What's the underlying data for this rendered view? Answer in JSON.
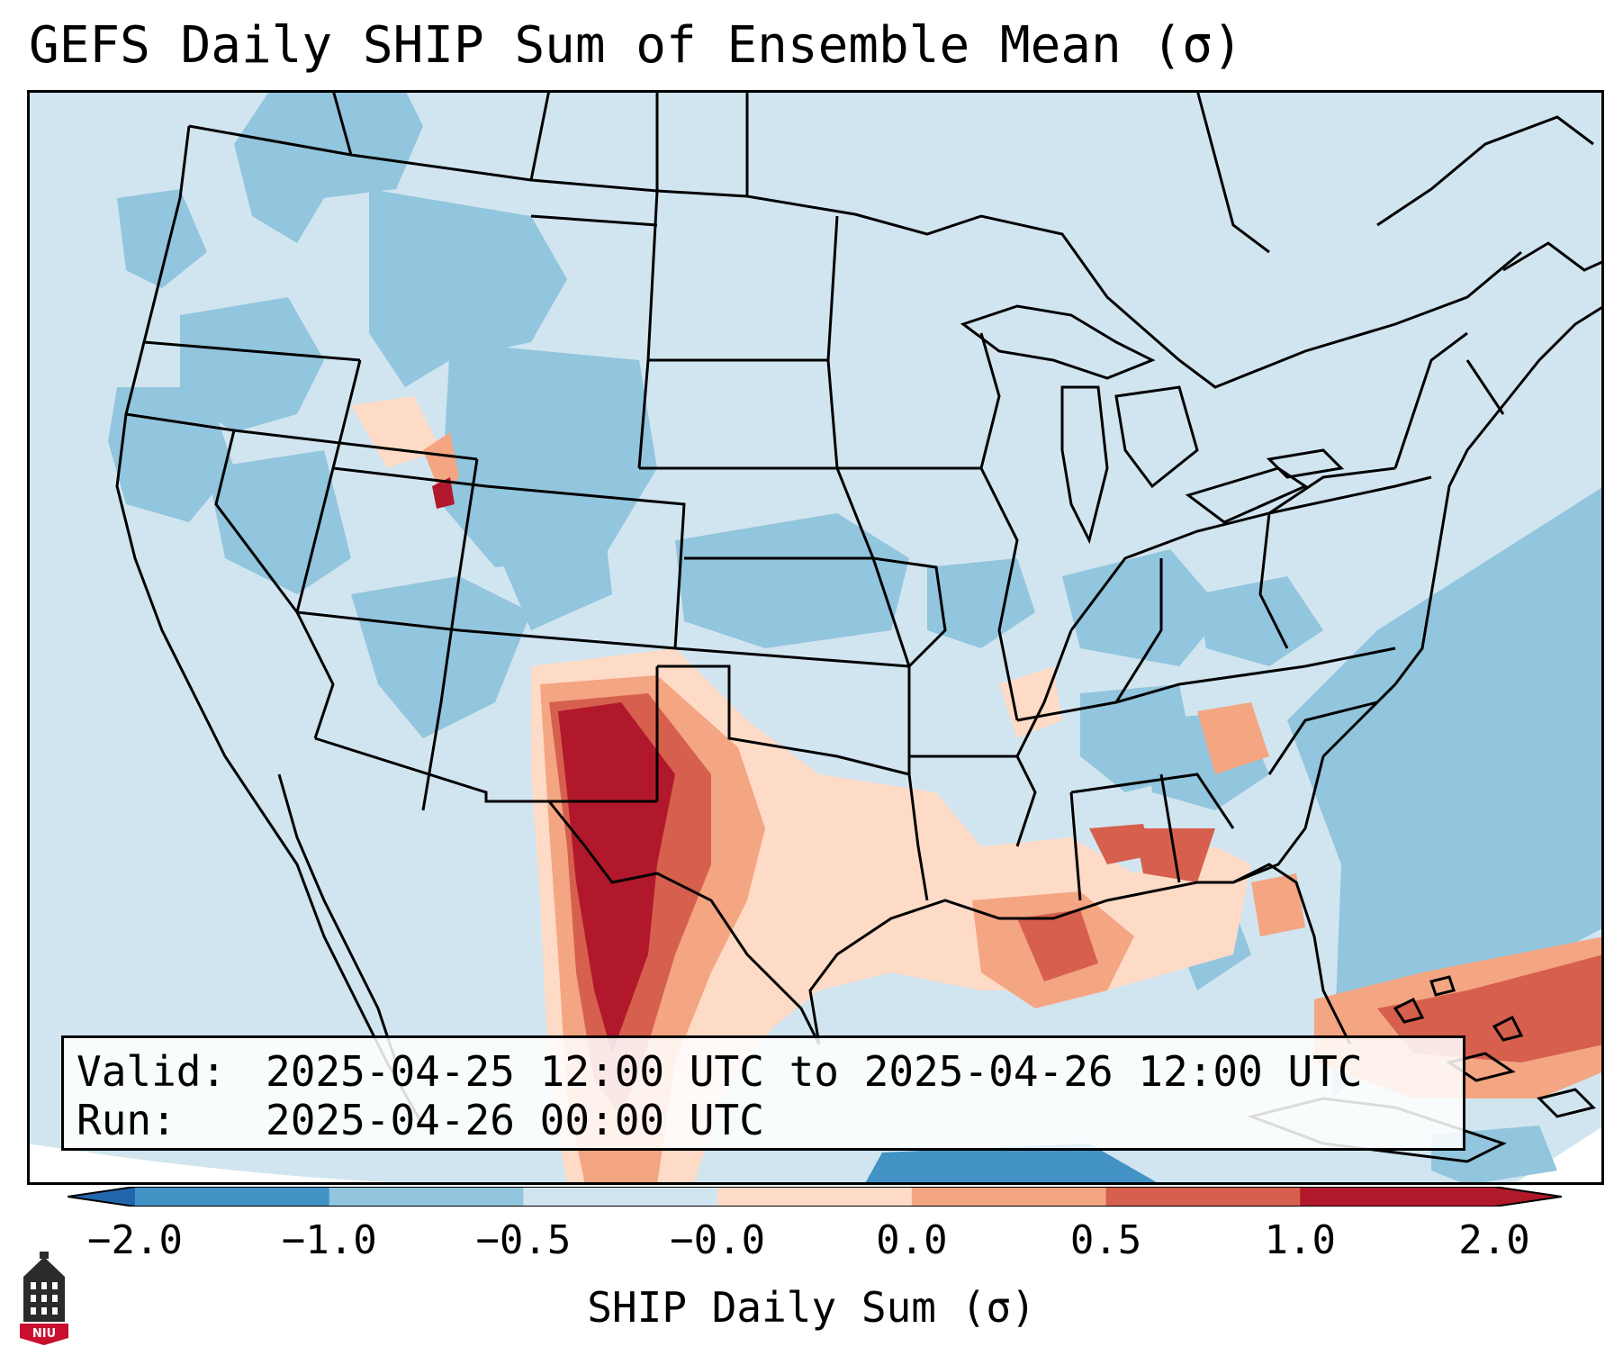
{
  "title": "GEFS Daily SHIP Sum of Ensemble Mean (σ)",
  "info": {
    "valid_label": "Valid:",
    "valid_value": "2025-04-25 12:00 UTC to 2025-04-26 12:00 UTC",
    "run_label": "Run:",
    "run_value": "2025-04-26 00:00 UTC"
  },
  "colorbar": {
    "label": "SHIP Daily Sum (σ)",
    "ticks": [
      "−2.0",
      "−1.0",
      "−0.5",
      "−0.0",
      "0.0",
      "0.5",
      "1.0",
      "2.0"
    ],
    "colors": [
      "#4292c6",
      "#92c5de",
      "#d1e5f0",
      "#fddbc7",
      "#f4a582",
      "#d6604d",
      "#b2182b"
    ],
    "extend_low_color": "#2166ac",
    "extend_high_color": "#b2182b"
  },
  "map": {
    "background_color": "#d1e5f0",
    "outside_color": "#ffffff",
    "border_color": "#000000"
  },
  "logo": {
    "text": "NIU"
  }
}
